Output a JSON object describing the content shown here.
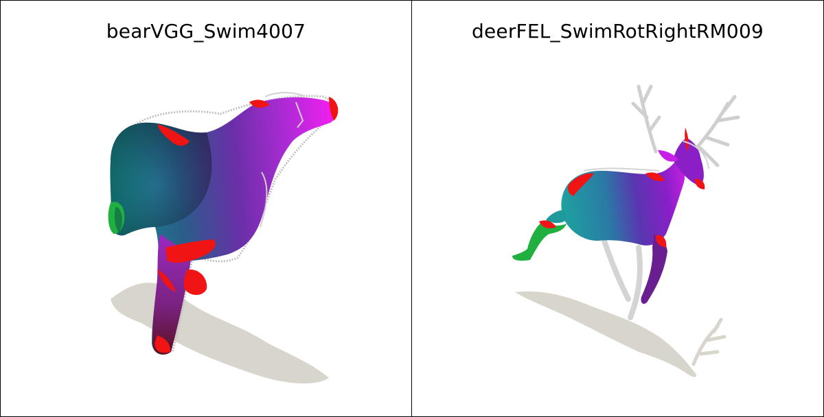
{
  "panels": [
    {
      "title": "bearVGG_Swim4007",
      "subject": "bear"
    },
    {
      "title": "deerFEL_SwimRotRightRM009",
      "subject": "deer"
    }
  ],
  "colors": {
    "shadow": "#d8d5cd",
    "wire": "#c8c8c8",
    "teal": "#1f8f96",
    "purple": "#8a1fc8",
    "magenta": "#e21ee6",
    "red": "#f01414",
    "green": "#1fb040"
  }
}
